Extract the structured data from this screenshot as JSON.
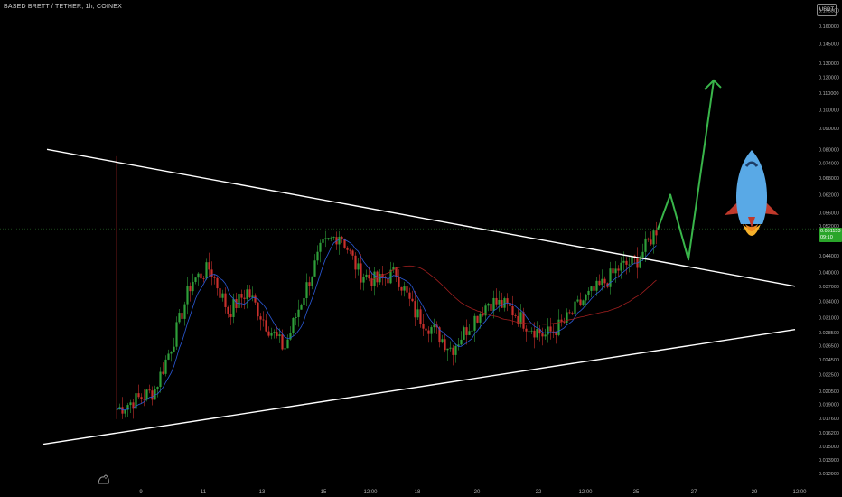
{
  "header": {
    "symbol": "BASED BRETT / TETHER, 1h, COINEX",
    "currency": "USDT"
  },
  "last_price": {
    "price": "0.051153",
    "countdown": "09:10"
  },
  "colors": {
    "background": "#000000",
    "bull": "#2e9e3a",
    "bear": "#c9302c",
    "wick": "#8a1e1e",
    "ma_fast": "#2b5ad8",
    "ma_slow": "#a11f1f",
    "trendline": "#ffffff",
    "projection": "#39b54a",
    "price_tag": "#2aa52a"
  },
  "chart_data": {
    "type": "candlestick",
    "title": "BASED BRETT / TETHER, 1h, COINEX",
    "xlabel": "",
    "ylabel": "",
    "x_tick_labels": [
      "9",
      "11",
      "13",
      "15",
      "12:00",
      "18",
      "20",
      "22",
      "12:00",
      "25",
      "27",
      "29",
      "12:00"
    ],
    "y_tick_labels": [
      "0.012900",
      "0.013900",
      "0.015000",
      "0.016200",
      "0.017600",
      "0.019000",
      "0.020500",
      "0.022500",
      "0.024500",
      "0.026500",
      "0.028500",
      "0.031000",
      "0.034000",
      "0.037000",
      "0.040000",
      "0.044000",
      "0.048000",
      "0.052000",
      "0.056000",
      "0.062000",
      "0.068000",
      "0.074000",
      "0.080000",
      "0.090000",
      "0.100000",
      "0.110000",
      "0.120000",
      "0.130000",
      "0.145000",
      "0.160000",
      "0.175000"
    ],
    "y_scale": "log",
    "ylim": [
      0.0125,
      0.18
    ],
    "price_path": [
      {
        "x": "9",
        "y": 0.0185
      },
      {
        "x": "9",
        "y": 0.0195
      },
      {
        "x": "9",
        "y": 0.0205
      },
      {
        "x": "11",
        "y": 0.027
      },
      {
        "x": "11",
        "y": 0.038
      },
      {
        "x": "11",
        "y": 0.041
      },
      {
        "x": "13",
        "y": 0.032
      },
      {
        "x": "13",
        "y": 0.036
      },
      {
        "x": "13",
        "y": 0.03
      },
      {
        "x": "15",
        "y": 0.026
      },
      {
        "x": "15",
        "y": 0.035
      },
      {
        "x": "15",
        "y": 0.046
      },
      {
        "x": "12:00",
        "y": 0.05
      },
      {
        "x": "12:00",
        "y": 0.04
      },
      {
        "x": "12:00",
        "y": 0.038
      },
      {
        "x": "18",
        "y": 0.04
      },
      {
        "x": "18",
        "y": 0.032
      },
      {
        "x": "18",
        "y": 0.029
      },
      {
        "x": "20",
        "y": 0.026
      },
      {
        "x": "20",
        "y": 0.03
      },
      {
        "x": "20",
        "y": 0.034
      },
      {
        "x": "22",
        "y": 0.033
      },
      {
        "x": "22",
        "y": 0.03
      },
      {
        "x": "22",
        "y": 0.028
      },
      {
        "x": "12:00",
        "y": 0.03
      },
      {
        "x": "12:00",
        "y": 0.034
      },
      {
        "x": "12:00",
        "y": 0.037
      },
      {
        "x": "25",
        "y": 0.041
      },
      {
        "x": "25",
        "y": 0.043
      },
      {
        "x": "25",
        "y": 0.051
      }
    ],
    "spike": {
      "x": "9",
      "y": 0.077
    },
    "trendlines": [
      {
        "name": "resistance",
        "from": 0.08,
        "to": 0.037
      },
      {
        "name": "support",
        "from": 0.0152,
        "to": 0.029
      }
    ],
    "projection_path": [
      0.051,
      0.062,
      0.043,
      0.118
    ],
    "last_price": 0.051153,
    "legend": "none",
    "grid": false
  }
}
